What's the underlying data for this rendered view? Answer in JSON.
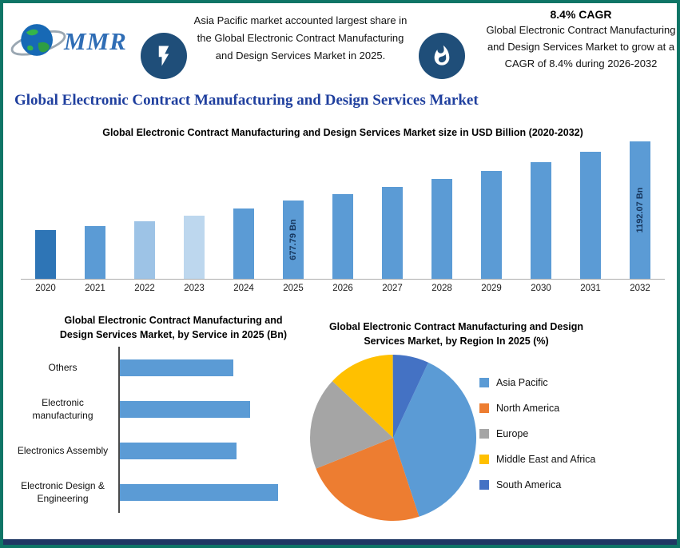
{
  "header": {
    "logo_text": "MMR",
    "callouts": [
      {
        "icon": "lightning-icon",
        "text": "Asia Pacific market accounted largest share in the Global Electronic Contract Manufacturing and Design Services Market in 2025."
      },
      {
        "icon": "flame-icon",
        "heading": "8.4% CAGR",
        "text": "Global Electronic Contract Manufacturing and Design Services Market to grow at a CAGR of 8.4% during 2026-2032"
      }
    ],
    "title": "Global Electronic Contract Manufacturing and Design Services Market"
  },
  "colors": {
    "frame_border": "#0E7566",
    "bottom_strip": "#1F3864",
    "icon_circle": "#1F4E79",
    "main_title": "#1F3F9E",
    "bar_primary": "#5B9BD5",
    "bar_label_text": "#17375E"
  },
  "chart_data": [
    {
      "type": "bar",
      "title": "Global Electronic Contract Manufacturing and Design Services Market size in USD Billion (2020-2032)",
      "categories": [
        "2020",
        "2021",
        "2022",
        "2023",
        "2024",
        "2025",
        "2026",
        "2027",
        "2028",
        "2029",
        "2030",
        "2031",
        "2032"
      ],
      "values": [
        420,
        460,
        500,
        545,
        610,
        677.79,
        734.72,
        796.44,
        863.34,
        935.86,
        1014.47,
        1099.69,
        1192.07
      ],
      "bar_labels": [
        "",
        "",
        "",
        "",
        "",
        "677.79 Bn",
        "",
        "",
        "",
        "",
        "",
        "",
        "1192.07 Bn"
      ],
      "bar_colors": [
        "#2E75B6",
        "#5B9BD5",
        "#9DC3E6",
        "#BDD7EE",
        "#5B9BD5",
        "#5B9BD5",
        "#5B9BD5",
        "#5B9BD5",
        "#5B9BD5",
        "#5B9BD5",
        "#5B9BD5",
        "#5B9BD5",
        "#5B9BD5"
      ],
      "ylabel": "USD Billion",
      "ylim": [
        0,
        1192.07
      ],
      "grid": false
    },
    {
      "type": "bar",
      "orientation": "horizontal",
      "title": "Global Electronic Contract Manufacturing and Design Services Market, by Service in 2025 (Bn)",
      "categories": [
        "Others",
        "Electronic manufacturing",
        "Electronics Assembly",
        "Electronic Design & Engineering"
      ],
      "values": [
        148,
        170,
        153,
        207
      ],
      "bar_color": "#5B9BD5",
      "grid": false
    },
    {
      "type": "pie",
      "title": "Global Electronic Contract Manufacturing and Design Services Market, by Region In 2025 (%)",
      "labels": [
        "Asia Pacific",
        "North America",
        "Europe",
        "Middle East and Africa",
        "South America"
      ],
      "values": [
        38,
        24,
        18,
        13,
        7
      ],
      "colors": [
        "#5B9BD5",
        "#ED7D31",
        "#A5A5A5",
        "#FFC000",
        "#4472C4"
      ],
      "legend_position": "right",
      "rotation_deg": 25
    }
  ]
}
